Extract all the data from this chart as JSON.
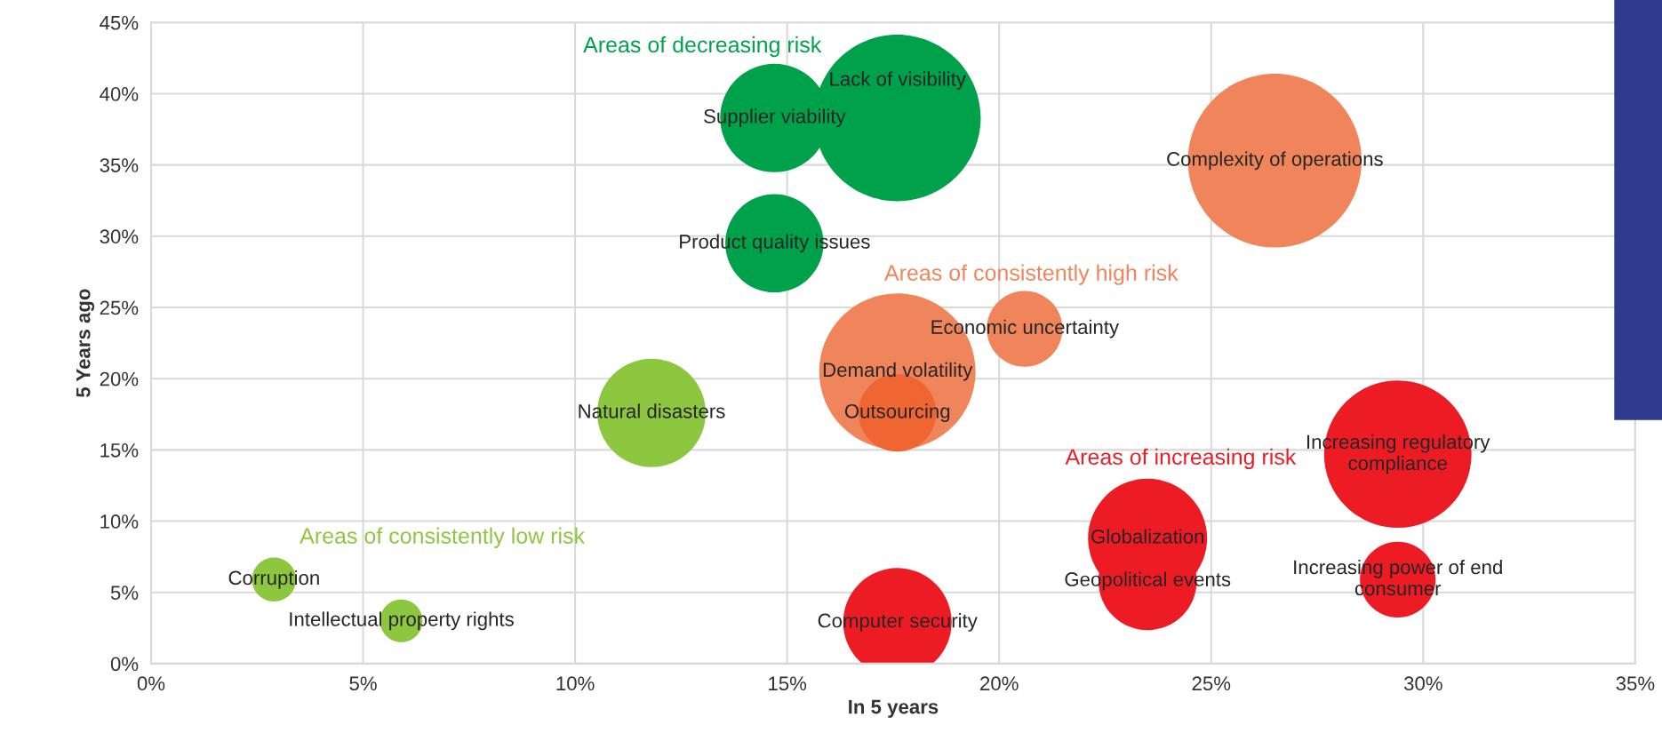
{
  "chart_data": {
    "type": "bubble",
    "xlabel": "In 5 years",
    "ylabel": "5 Years ago",
    "xlim": [
      0,
      35
    ],
    "ylim": [
      0,
      45
    ],
    "xticks": [
      {
        "value": 0,
        "label": "0%"
      },
      {
        "value": 5,
        "label": "5%"
      },
      {
        "value": 10,
        "label": "10%"
      },
      {
        "value": 15,
        "label": "15%"
      },
      {
        "value": 20,
        "label": "20%"
      },
      {
        "value": 25,
        "label": "25%"
      },
      {
        "value": 30,
        "label": "30%"
      },
      {
        "value": 35,
        "label": "35%"
      }
    ],
    "yticks": [
      {
        "value": 0,
        "label": "0%"
      },
      {
        "value": 5,
        "label": "5%"
      },
      {
        "value": 10,
        "label": "10%"
      },
      {
        "value": 15,
        "label": "15%"
      },
      {
        "value": 20,
        "label": "20%"
      },
      {
        "value": 25,
        "label": "25%"
      },
      {
        "value": 30,
        "label": "30%"
      },
      {
        "value": 35,
        "label": "35%"
      },
      {
        "value": 40,
        "label": "40%"
      },
      {
        "value": 45,
        "label": "45%"
      }
    ],
    "grid": true,
    "legend": false,
    "series": [
      {
        "name": "Areas of decreasing risk",
        "color": "#00a14b",
        "x": [
          14.7,
          17.6,
          14.7
        ],
        "values": [
          38.3,
          38.3,
          29.5
        ],
        "sizes": [
          0.39,
          0.92,
          0.32
        ]
      },
      {
        "name": "Areas of consistently low risk",
        "color": "#8dc63f",
        "x": [
          2.9,
          5.9,
          11.8
        ],
        "values": [
          5.9,
          3.0,
          17.6
        ],
        "sizes": [
          0.064,
          0.06,
          0.39
        ]
      },
      {
        "name": "Areas of consistently high risk",
        "color": "#f0845a",
        "colors": [
          "#f0845a",
          "#f0845a",
          "#ef6633",
          "#f0845a"
        ],
        "x": [
          26.5,
          17.6,
          17.6,
          20.6
        ],
        "values": [
          35.3,
          20.5,
          17.6,
          23.5
        ],
        "sizes": [
          1,
          0.81,
          0.2,
          0.19
        ]
      },
      {
        "name": "Areas of increasing risk",
        "color": "#ed1c24",
        "x": [
          29.4,
          29.4,
          23.5,
          23.5,
          17.6
        ],
        "values": [
          14.7,
          5.9,
          8.8,
          5.8,
          2.9
        ],
        "sizes": [
          0.72,
          0.19,
          0.47,
          0.32,
          0.39
        ]
      }
    ],
    "annotations": [
      {
        "text": "Supplier viability",
        "x": 14.7,
        "y": 38.3
      },
      {
        "text": "Lack of visibility",
        "x": 17.6,
        "y": 38.3
      },
      {
        "text": "Product quality issues",
        "x": 14.7,
        "y": 29.5
      },
      {
        "text": "Corruption",
        "x": 2.9,
        "y": 5.9
      },
      {
        "text": "Intellectual property rights",
        "x": 5.9,
        "y": 3.0
      },
      {
        "text": "Natural disasters",
        "x": 11.8,
        "y": 17.6
      },
      {
        "text": "Complexity of operations",
        "x": 26.5,
        "y": 35.3
      },
      {
        "text": "Demand volatility",
        "x": 17.6,
        "y": 20.5
      },
      {
        "text": "Outsourcing",
        "x": 17.6,
        "y": 17.6
      },
      {
        "text": "Economic uncertainty",
        "x": 20.6,
        "y": 23.5
      },
      {
        "text": "Increasing regulatory\ncompliance",
        "x": 29.4,
        "y": 14.7
      },
      {
        "text": "Increasing power of end\nconsumer",
        "x": 29.4,
        "y": 5.9
      },
      {
        "text": "Globalization",
        "x": 23.5,
        "y": 8.8
      },
      {
        "text": "Geopolitical events",
        "x": 23.5,
        "y": 5.8
      },
      {
        "text": "Computer security",
        "x": 17.6,
        "y": 2.9
      }
    ]
  }
}
